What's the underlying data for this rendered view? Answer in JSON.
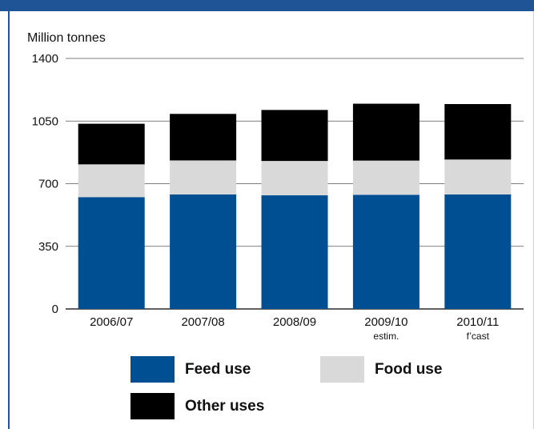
{
  "chart_data": {
    "type": "bar",
    "stacked": true,
    "ylabel": "Million tonnes",
    "ylim": [
      0,
      1400
    ],
    "yticks": [
      0,
      350,
      700,
      1050,
      1400
    ],
    "grid": true,
    "categories": [
      {
        "label": "2006/07",
        "sublabel": ""
      },
      {
        "label": "2007/08",
        "sublabel": ""
      },
      {
        "label": "2008/09",
        "sublabel": ""
      },
      {
        "label": "2009/10",
        "sublabel": "estim."
      },
      {
        "label": "2010/11",
        "sublabel": "f’cast"
      }
    ],
    "series": [
      {
        "name": "Feed use",
        "color": "#004f92",
        "values": [
          625,
          640,
          635,
          638,
          640
        ]
      },
      {
        "name": "Food use",
        "color": "#d9d9d9",
        "values": [
          183,
          190,
          192,
          191,
          195
        ]
      },
      {
        "name": "Other uses",
        "color": "#000000",
        "values": [
          227,
          260,
          285,
          318,
          310
        ]
      }
    ]
  },
  "legend": {
    "feed_label": "Feed use",
    "food_label": "Food use",
    "other_label": "Other uses"
  },
  "colors": {
    "frame": "#1f5597",
    "grid": "#555555"
  }
}
